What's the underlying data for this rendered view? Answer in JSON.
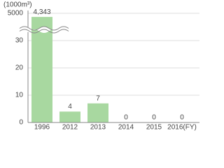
{
  "chart_data": {
    "type": "bar",
    "y_unit": "(1000m³)",
    "categories": [
      "1996",
      "2012",
      "2013",
      "2014",
      "2015",
      "2016(FY)"
    ],
    "values": [
      4343,
      4,
      7,
      0,
      0,
      0
    ],
    "value_labels": [
      "4,343",
      "4",
      "7",
      "0",
      "0",
      "0"
    ],
    "color": "#a8d8a0",
    "ylim": [
      0,
      5000
    ],
    "yticks": [
      0,
      10,
      20,
      30,
      5000
    ],
    "y_scale": "broken",
    "grid": true
  }
}
